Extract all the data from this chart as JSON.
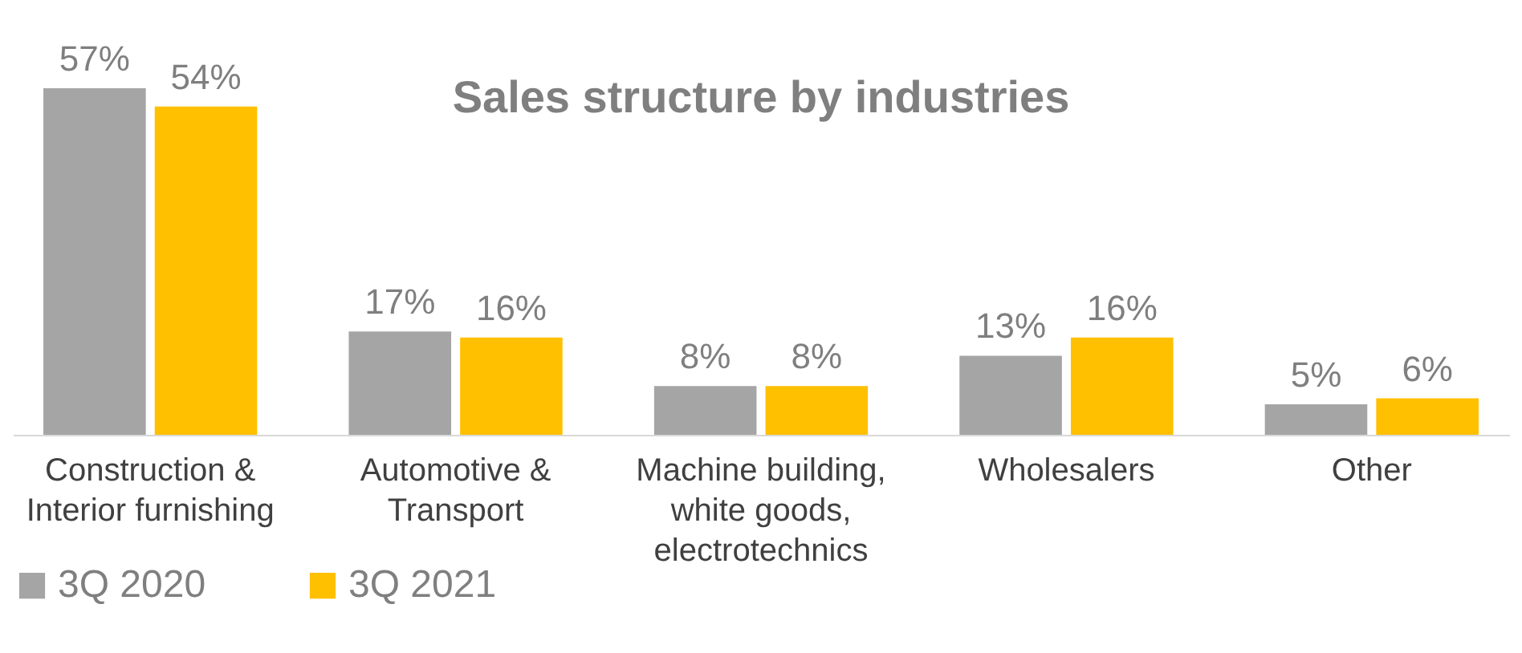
{
  "chart_data": {
    "type": "bar",
    "title": "Sales structure by industries",
    "categories": [
      "Construction &\nInterior furnishing",
      "Automotive &\nTransport",
      "Machine building,\nwhite goods,\nelectrotechnics",
      "Wholesalers",
      "Other"
    ],
    "series": [
      {
        "name": "3Q 2020",
        "color": "#a5a5a5",
        "values": [
          57,
          17,
          8,
          13,
          5
        ],
        "value_labels": [
          "57%",
          "17%",
          "8%",
          "13%",
          "5%"
        ]
      },
      {
        "name": "3Q 2021",
        "color": "#ffc000",
        "values": [
          54,
          16,
          8,
          16,
          6
        ],
        "value_labels": [
          "54%",
          "16%",
          "8%",
          "16%",
          "6%"
        ]
      }
    ],
    "legend": "bottom",
    "grid": false
  }
}
